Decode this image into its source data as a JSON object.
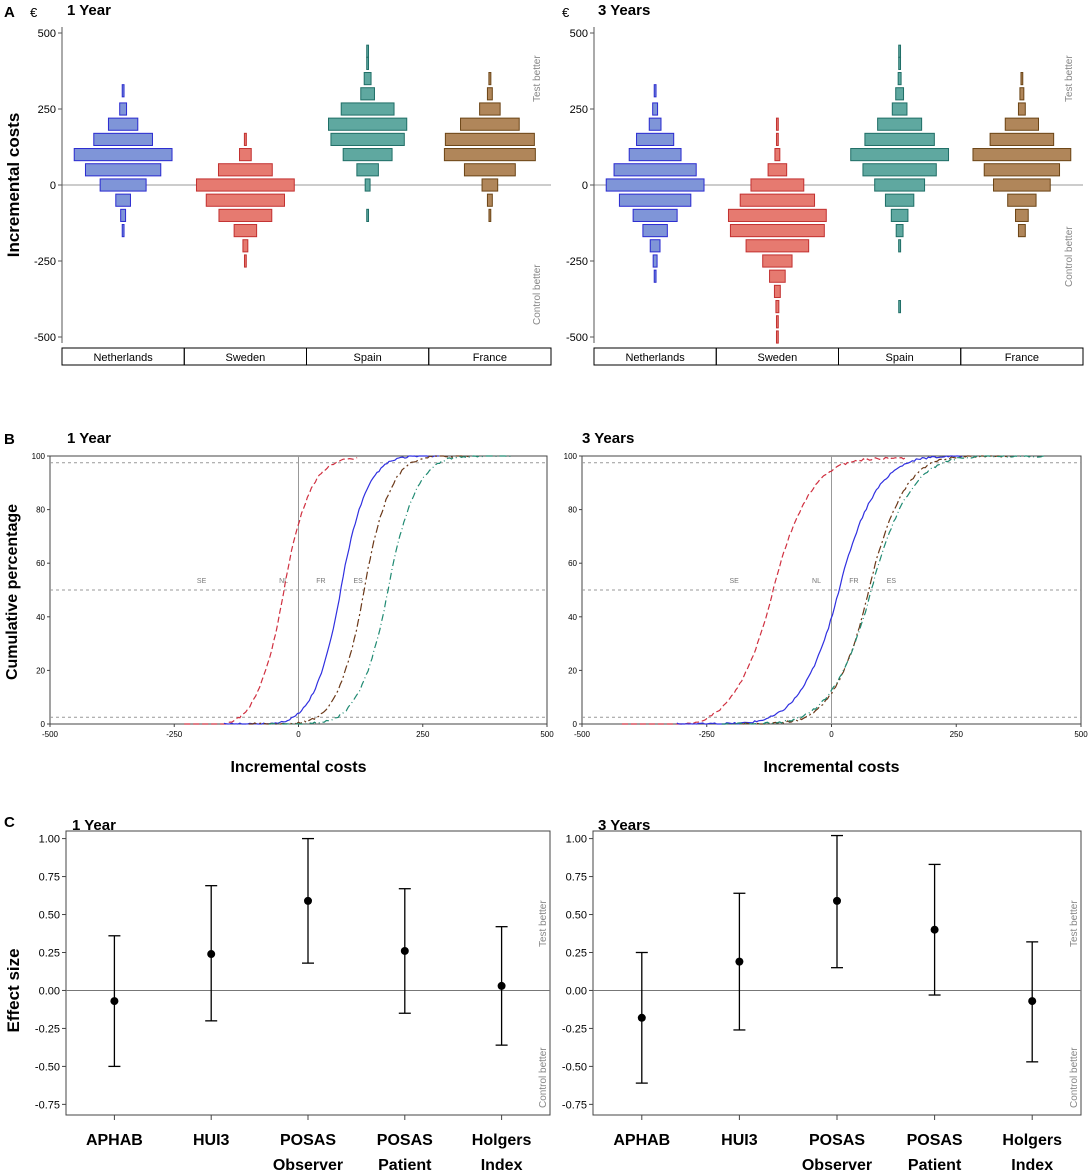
{
  "panel_letters": [
    "A",
    "B",
    "C"
  ],
  "colors": {
    "Netherlands": {
      "fill": "#7f95d8",
      "stroke": "#2a2ad0",
      "line": "#3030e0"
    },
    "Sweden": {
      "fill": "#e67a70",
      "stroke": "#c23030",
      "line": "#d03040"
    },
    "Spain": {
      "fill": "#5fa8a0",
      "stroke": "#1f6e66",
      "line": "#1f8a72"
    },
    "France": {
      "fill": "#b0865a",
      "stroke": "#6b4415",
      "line": "#6b3818"
    }
  },
  "chart_data": [
    {
      "id": "A-1",
      "type": "histogram",
      "panel": "A",
      "title": "1 Year",
      "unit": "€",
      "ylabel": "Incremental costs",
      "ylim": [
        -500,
        500
      ],
      "yticks": [
        500,
        250,
        0,
        -250,
        -500
      ],
      "bin_width": 40,
      "annotations": {
        "top": "Test better",
        "bottom": "Control better"
      },
      "categories": [
        "Netherlands",
        "Sweden",
        "Spain",
        "France"
      ],
      "series": [
        {
          "name": "Netherlands",
          "bins": [
            {
              "center": 310,
              "width": 0.01
            },
            {
              "center": 250,
              "width": 0.07
            },
            {
              "center": 200,
              "width": 0.3
            },
            {
              "center": 150,
              "width": 0.6
            },
            {
              "center": 100,
              "width": 1.0
            },
            {
              "center": 50,
              "width": 0.77
            },
            {
              "center": 0,
              "width": 0.47
            },
            {
              "center": -50,
              "width": 0.15
            },
            {
              "center": -100,
              "width": 0.05
            },
            {
              "center": -150,
              "width": 0.01
            }
          ]
        },
        {
          "name": "Sweden",
          "bins": [
            {
              "center": 150,
              "width": 0.02
            },
            {
              "center": 100,
              "width": 0.12
            },
            {
              "center": 50,
              "width": 0.55
            },
            {
              "center": 0,
              "width": 1.0
            },
            {
              "center": -50,
              "width": 0.8
            },
            {
              "center": -100,
              "width": 0.54
            },
            {
              "center": -150,
              "width": 0.23
            },
            {
              "center": -200,
              "width": 0.05
            },
            {
              "center": -250,
              "width": 0.01
            }
          ]
        },
        {
          "name": "Spain",
          "bins": [
            {
              "center": 440,
              "width": 0.01
            },
            {
              "center": 400,
              "width": 0.01
            },
            {
              "center": 350,
              "width": 0.07
            },
            {
              "center": 300,
              "width": 0.14
            },
            {
              "center": 250,
              "width": 0.54
            },
            {
              "center": 200,
              "width": 0.8
            },
            {
              "center": 150,
              "width": 0.75
            },
            {
              "center": 100,
              "width": 0.5
            },
            {
              "center": 50,
              "width": 0.22
            },
            {
              "center": 0,
              "width": 0.05
            },
            {
              "center": -100,
              "width": 0.01
            }
          ]
        },
        {
          "name": "France",
          "bins": [
            {
              "center": 350,
              "width": 0.02
            },
            {
              "center": 300,
              "width": 0.05
            },
            {
              "center": 250,
              "width": 0.21
            },
            {
              "center": 200,
              "width": 0.6
            },
            {
              "center": 150,
              "width": 0.91
            },
            {
              "center": 100,
              "width": 0.93
            },
            {
              "center": 50,
              "width": 0.52
            },
            {
              "center": 0,
              "width": 0.16
            },
            {
              "center": -50,
              "width": 0.05
            },
            {
              "center": -100,
              "width": 0.01
            }
          ]
        }
      ]
    },
    {
      "id": "A-3",
      "type": "histogram",
      "panel": "A",
      "title": "3 Years",
      "unit": "€",
      "ylabel": "",
      "ylim": [
        -500,
        500
      ],
      "yticks": [
        500,
        250,
        0,
        -250,
        -500
      ],
      "bin_width": 40,
      "annotations": {
        "top": "Test better",
        "bottom": "Control better"
      },
      "categories": [
        "Netherlands",
        "Sweden",
        "Spain",
        "France"
      ],
      "series": [
        {
          "name": "Netherlands",
          "bins": [
            {
              "center": 310,
              "width": 0.01
            },
            {
              "center": 250,
              "width": 0.05
            },
            {
              "center": 200,
              "width": 0.12
            },
            {
              "center": 150,
              "width": 0.38
            },
            {
              "center": 100,
              "width": 0.53
            },
            {
              "center": 50,
              "width": 0.84
            },
            {
              "center": 0,
              "width": 1.0
            },
            {
              "center": -50,
              "width": 0.73
            },
            {
              "center": -100,
              "width": 0.45
            },
            {
              "center": -150,
              "width": 0.25
            },
            {
              "center": -200,
              "width": 0.1
            },
            {
              "center": -250,
              "width": 0.04
            },
            {
              "center": -300,
              "width": 0.01
            }
          ]
        },
        {
          "name": "Sweden",
          "bins": [
            {
              "center": 200,
              "width": 0.01
            },
            {
              "center": 150,
              "width": 0.01
            },
            {
              "center": 100,
              "width": 0.05
            },
            {
              "center": 50,
              "width": 0.19
            },
            {
              "center": 0,
              "width": 0.54
            },
            {
              "center": -50,
              "width": 0.76
            },
            {
              "center": -100,
              "width": 1.0
            },
            {
              "center": -150,
              "width": 0.96
            },
            {
              "center": -200,
              "width": 0.64
            },
            {
              "center": -250,
              "width": 0.3
            },
            {
              "center": -300,
              "width": 0.16
            },
            {
              "center": -350,
              "width": 0.06
            },
            {
              "center": -400,
              "width": 0.03
            },
            {
              "center": -450,
              "width": 0.01
            },
            {
              "center": -500,
              "width": 0.01
            }
          ]
        },
        {
          "name": "Spain",
          "bins": [
            {
              "center": 440,
              "width": 0.01
            },
            {
              "center": 400,
              "width": 0.01
            },
            {
              "center": 350,
              "width": 0.03
            },
            {
              "center": 300,
              "width": 0.08
            },
            {
              "center": 250,
              "width": 0.15
            },
            {
              "center": 200,
              "width": 0.45
            },
            {
              "center": 150,
              "width": 0.71
            },
            {
              "center": 100,
              "width": 1.0
            },
            {
              "center": 50,
              "width": 0.75
            },
            {
              "center": 0,
              "width": 0.51
            },
            {
              "center": -50,
              "width": 0.29
            },
            {
              "center": -100,
              "width": 0.17
            },
            {
              "center": -150,
              "width": 0.07
            },
            {
              "center": -200,
              "width": 0.02
            },
            {
              "center": -400,
              "width": 0.01
            }
          ]
        },
        {
          "name": "France",
          "bins": [
            {
              "center": 350,
              "width": 0.01
            },
            {
              "center": 300,
              "width": 0.04
            },
            {
              "center": 250,
              "width": 0.07
            },
            {
              "center": 200,
              "width": 0.34
            },
            {
              "center": 150,
              "width": 0.65
            },
            {
              "center": 100,
              "width": 1.0
            },
            {
              "center": 50,
              "width": 0.77
            },
            {
              "center": 0,
              "width": 0.58
            },
            {
              "center": -50,
              "width": 0.29
            },
            {
              "center": -100,
              "width": 0.13
            },
            {
              "center": -150,
              "width": 0.07
            }
          ]
        }
      ]
    },
    {
      "id": "B-1",
      "type": "line",
      "panel": "B",
      "title": "1 Year",
      "xlabel": "Incremental costs",
      "ylabel": "Cumulative percentage",
      "xlim": [
        -500,
        500
      ],
      "ylim": [
        0,
        100
      ],
      "xticks": [
        -500,
        -250,
        0,
        250,
        500
      ],
      "yticks": [
        0,
        20,
        40,
        60,
        80,
        100
      ],
      "hlines": [
        2.5,
        50,
        97.5
      ],
      "vline": 0,
      "medians": [
        {
          "label": "SE",
          "x": -195
        },
        {
          "label": "NL",
          "x": -30
        },
        {
          "label": "FR",
          "x": 45
        },
        {
          "label": "ES",
          "x": 120
        }
      ],
      "series": [
        {
          "name": "Sweden",
          "label": "SE",
          "mean": -30,
          "sd": 52,
          "range": [
            -230,
            120
          ]
        },
        {
          "name": "Netherlands",
          "label": "NL",
          "mean": 85,
          "sd": 52,
          "range": [
            -150,
            285
          ]
        },
        {
          "name": "France",
          "label": "FR",
          "mean": 132,
          "sd": 52,
          "range": [
            -100,
            345
          ]
        },
        {
          "name": "Spain",
          "label": "ES",
          "mean": 180,
          "sd": 56,
          "range": [
            -60,
            430
          ]
        }
      ]
    },
    {
      "id": "B-3",
      "type": "line",
      "panel": "B",
      "title": "3 Years",
      "xlabel": "Incremental costs",
      "ylabel": "",
      "xlim": [
        -500,
        500
      ],
      "ylim": [
        0,
        100
      ],
      "xticks": [
        -500,
        -250,
        0,
        250,
        500
      ],
      "yticks": [
        0,
        20,
        40,
        60,
        80,
        100
      ],
      "hlines": [
        2.5,
        50,
        97.5
      ],
      "vline": 0,
      "medians": [
        {
          "label": "SE",
          "x": -195
        },
        {
          "label": "NL",
          "x": -30
        },
        {
          "label": "FR",
          "x": 45
        },
        {
          "label": "ES",
          "x": 120
        }
      ],
      "series": [
        {
          "name": "Sweden",
          "label": "SE",
          "mean": -118,
          "sd": 75,
          "range": [
            -420,
            150
          ]
        },
        {
          "name": "Netherlands",
          "label": "NL",
          "mean": 15,
          "sd": 75,
          "range": [
            -310,
            265
          ]
        },
        {
          "name": "France",
          "label": "FR",
          "mean": 75,
          "sd": 70,
          "range": [
            -180,
            360
          ]
        },
        {
          "name": "Spain",
          "label": "ES",
          "mean": 80,
          "sd": 78,
          "range": [
            -220,
            430
          ]
        }
      ]
    },
    {
      "id": "C-1",
      "type": "errorbar",
      "panel": "C",
      "title": "1 Year",
      "ylabel": "Effect size",
      "ylim": [
        -0.82,
        1.05
      ],
      "yticks": [
        "1.00",
        "0.75",
        "0.50",
        "0.25",
        "0.00",
        "-0.25",
        "-0.50",
        "-0.75"
      ],
      "annotations": {
        "top": "Test better",
        "bottom": "Control better"
      },
      "categories": [
        "APHAB",
        "HUI3",
        "POSAS Observer",
        "POSAS Patient",
        "Holgers Index"
      ],
      "x_labels": [
        [
          "APHAB"
        ],
        [
          "HUI3"
        ],
        [
          "POSAS",
          "Observer"
        ],
        [
          "POSAS",
          "Patient"
        ],
        [
          "Holgers",
          "Index"
        ]
      ],
      "values": [
        -0.07,
        0.24,
        0.59,
        0.26,
        0.03
      ],
      "lower": [
        -0.5,
        -0.2,
        0.18,
        -0.15,
        -0.36
      ],
      "upper": [
        0.36,
        0.69,
        1.0,
        0.67,
        0.42
      ]
    },
    {
      "id": "C-3",
      "type": "errorbar",
      "panel": "C",
      "title": "3 Years",
      "ylabel": "",
      "ylim": [
        -0.82,
        1.05
      ],
      "yticks": [
        "1.00",
        "0.75",
        "0.50",
        "0.25",
        "0.00",
        "-0.25",
        "-0.50",
        "-0.75"
      ],
      "annotations": {
        "top": "Test better",
        "bottom": "Control better"
      },
      "categories": [
        "APHAB",
        "HUI3",
        "POSAS Observer",
        "POSAS Patient",
        "Holgers Index"
      ],
      "x_labels": [
        [
          "APHAB"
        ],
        [
          "HUI3"
        ],
        [
          "POSAS",
          "Observer"
        ],
        [
          "POSAS",
          "Patient"
        ],
        [
          "Holgers",
          "Index"
        ]
      ],
      "values": [
        -0.18,
        0.19,
        0.59,
        0.4,
        -0.07
      ],
      "lower": [
        -0.61,
        -0.26,
        0.15,
        -0.03,
        -0.47
      ],
      "upper": [
        0.25,
        0.64,
        1.02,
        0.83,
        0.32
      ]
    }
  ]
}
